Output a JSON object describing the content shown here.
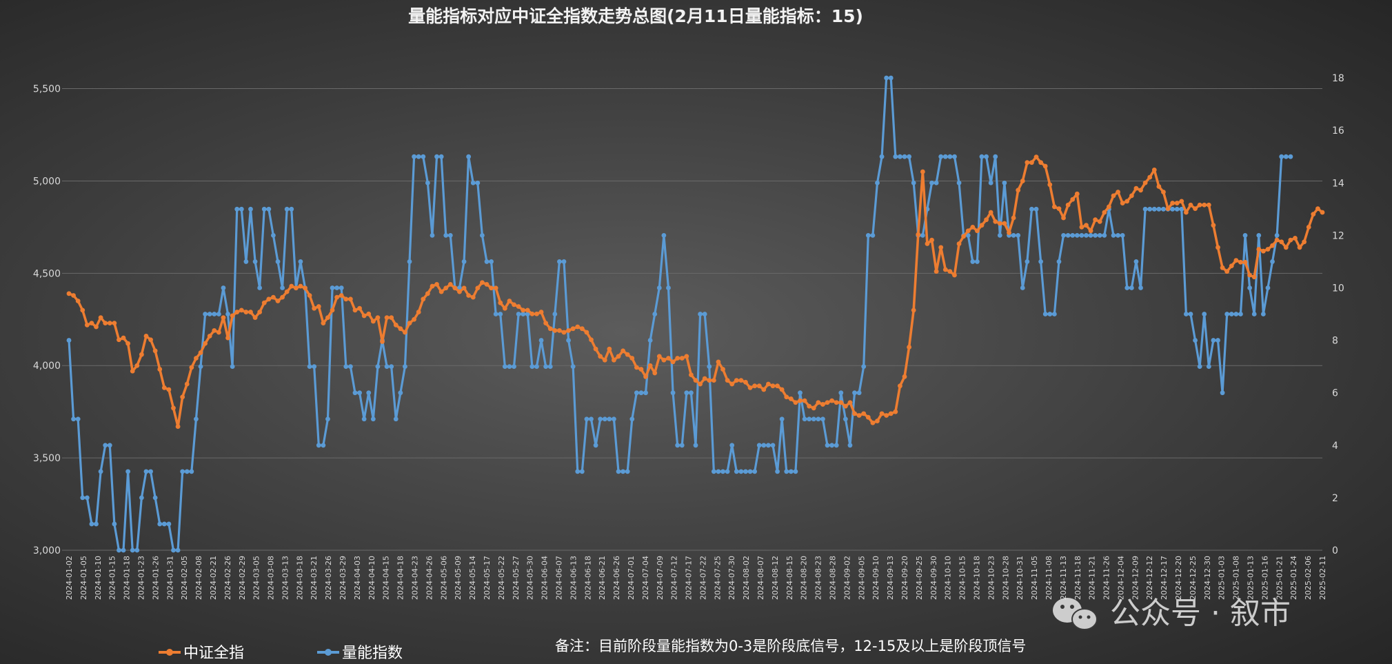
{
  "chart_data": {
    "type": "line",
    "title": "量能指标对应中证全指数走势总图(2月11日量能指标：15)",
    "xlabel": "",
    "ylabel": "",
    "y_left_ticks": [
      "3,000",
      "3,500",
      "4,000",
      "4,500",
      "5,000",
      "5,500"
    ],
    "y_left_range": [
      3000,
      5700
    ],
    "y_right_ticks": [
      "0",
      "2",
      "4",
      "6",
      "8",
      "10",
      "12",
      "14",
      "16",
      "18"
    ],
    "y_right_range": [
      0,
      19
    ],
    "grid": true,
    "legend_position": "bottom-left",
    "x_tick_labels": [
      "2024-01-02",
      "2024-01-05",
      "2024-01-10",
      "2024-01-15",
      "2024-01-18",
      "2024-01-23",
      "2024-01-26",
      "2024-01-31",
      "2024-02-05",
      "2024-02-08",
      "2024-02-21",
      "2024-02-26",
      "2024-02-29",
      "2024-03-05",
      "2024-03-08",
      "2024-03-13",
      "2024-03-18",
      "2024-03-21",
      "2024-03-26",
      "2024-03-29",
      "2024-04-03",
      "2024-04-10",
      "2024-04-15",
      "2024-04-18",
      "2024-04-23",
      "2024-04-26",
      "2024-05-06",
      "2024-05-09",
      "2024-05-14",
      "2024-05-17",
      "2024-05-22",
      "2024-05-27",
      "2024-05-30",
      "2024-06-04",
      "2024-06-07",
      "2024-06-13",
      "2024-06-18",
      "2024-06-21",
      "2024-06-26",
      "2024-07-01",
      "2024-07-04",
      "2024-07-09",
      "2024-07-12",
      "2024-07-17",
      "2024-07-22",
      "2024-07-25",
      "2024-07-30",
      "2024-08-02",
      "2024-08-07",
      "2024-08-12",
      "2024-08-15",
      "2024-08-20",
      "2024-08-23",
      "2024-08-28",
      "2024-09-02",
      "2024-09-05",
      "2024-09-10",
      "2024-09-13",
      "2024-09-20",
      "2024-09-25",
      "2024-09-30",
      "2024-10-10",
      "2024-10-15",
      "2024-10-18",
      "2024-10-23",
      "2024-10-28",
      "2024-10-31",
      "2024-11-05",
      "2024-11-08",
      "2024-11-13",
      "2024-11-18",
      "2024-11-21",
      "2024-11-26",
      "2024-12-04",
      "2024-12-09",
      "2024-12-12",
      "2024-12-17",
      "2024-12-20",
      "2024-12-25",
      "2024-12-30",
      "2025-01-03",
      "2025-01-08",
      "2025-01-13",
      "2025-01-16",
      "2025-01-21",
      "2025-01-24",
      "2025-02-06",
      "2025-02-11"
    ],
    "series": [
      {
        "name": "中证全指",
        "axis": "left",
        "color": "#ed7d31",
        "values": [
          4390,
          4380,
          4350,
          4300,
          4220,
          4230,
          4210,
          4260,
          4230,
          4230,
          4230,
          4140,
          4150,
          4120,
          3970,
          4000,
          4060,
          4160,
          4140,
          4080,
          3980,
          3880,
          3870,
          3770,
          3670,
          3830,
          3900,
          3990,
          4040,
          4070,
          4120,
          4160,
          4190,
          4180,
          4260,
          4150,
          4270,
          4290,
          4300,
          4290,
          4290,
          4260,
          4290,
          4340,
          4360,
          4370,
          4350,
          4370,
          4400,
          4430,
          4420,
          4430,
          4420,
          4380,
          4310,
          4320,
          4230,
          4260,
          4300,
          4370,
          4380,
          4360,
          4360,
          4300,
          4310,
          4270,
          4280,
          4240,
          4260,
          4130,
          4260,
          4260,
          4220,
          4200,
          4180,
          4230,
          4250,
          4290,
          4360,
          4390,
          4430,
          4440,
          4400,
          4420,
          4440,
          4420,
          4400,
          4420,
          4380,
          4370,
          4420,
          4450,
          4440,
          4420,
          4420,
          4340,
          4310,
          4350,
          4330,
          4320,
          4300,
          4300,
          4280,
          4280,
          4290,
          4230,
          4200,
          4190,
          4190,
          4180,
          4190,
          4200,
          4210,
          4200,
          4180,
          4140,
          4090,
          4050,
          4030,
          4090,
          4030,
          4050,
          4080,
          4060,
          4040,
          3990,
          3980,
          3940,
          4000,
          3960,
          4050,
          4030,
          4040,
          4020,
          4040,
          4040,
          4050,
          3950,
          3920,
          3900,
          3930,
          3920,
          3920,
          4020,
          3980,
          3920,
          3900,
          3920,
          3920,
          3910,
          3880,
          3890,
          3890,
          3870,
          3900,
          3890,
          3890,
          3870,
          3830,
          3820,
          3800,
          3810,
          3810,
          3780,
          3770,
          3800,
          3790,
          3800,
          3810,
          3800,
          3800,
          3780,
          3800,
          3740,
          3730,
          3740,
          3720,
          3690,
          3700,
          3740,
          3730,
          3740,
          3750,
          3890,
          3940,
          4100,
          4300,
          4710,
          5050,
          4660,
          4680,
          4510,
          4640,
          4520,
          4510,
          4490,
          4660,
          4700,
          4730,
          4750,
          4730,
          4760,
          4790,
          4830,
          4780,
          4770,
          4770,
          4720,
          4800,
          4950,
          5000,
          5100,
          5100,
          5130,
          5100,
          5080,
          4980,
          4860,
          4850,
          4800,
          4870,
          4900,
          4930,
          4750,
          4760,
          4730,
          4790,
          4780,
          4830,
          4860,
          4920,
          4940,
          4880,
          4890,
          4920,
          4960,
          4950,
          4990,
          5020,
          5060,
          4970,
          4940,
          4850,
          4880,
          4880,
          4890,
          4830,
          4870,
          4850,
          4870,
          4870,
          4870,
          4760,
          4640,
          4530,
          4510,
          4540,
          4570,
          4560,
          4560,
          4490,
          4480,
          4630,
          4620,
          4630,
          4650,
          4680,
          4670,
          4640,
          4680,
          4690,
          4640,
          4670,
          4750,
          4820,
          4850,
          4830
        ]
      },
      {
        "name": "量能指数",
        "axis": "right",
        "color": "#5b9bd5",
        "values": [
          8,
          5,
          5,
          2,
          2,
          1,
          1,
          3,
          4,
          4,
          1,
          0,
          0,
          3,
          0,
          0,
          2,
          3,
          3,
          2,
          1,
          1,
          1,
          0,
          0,
          3,
          3,
          3,
          5,
          7,
          9,
          9,
          9,
          9,
          10,
          9,
          7,
          13,
          13,
          11,
          13,
          11,
          10,
          13,
          13,
          12,
          11,
          10,
          13,
          13,
          10,
          11,
          10,
          7,
          7,
          4,
          4,
          5,
          10,
          10,
          10,
          7,
          7,
          6,
          6,
          5,
          6,
          5,
          7,
          8,
          7,
          7,
          5,
          6,
          7,
          11,
          15,
          15,
          15,
          14,
          12,
          15,
          15,
          12,
          12,
          10,
          10,
          11,
          15,
          14,
          14,
          12,
          11,
          11,
          9,
          9,
          7,
          7,
          7,
          9,
          9,
          9,
          7,
          7,
          8,
          7,
          7,
          9,
          11,
          11,
          8,
          7,
          3,
          3,
          5,
          5,
          4,
          5,
          5,
          5,
          5,
          3,
          3,
          3,
          5,
          6,
          6,
          6,
          8,
          9,
          10,
          12,
          10,
          6,
          4,
          4,
          6,
          6,
          4,
          9,
          9,
          7,
          3,
          3,
          3,
          3,
          4,
          3,
          3,
          3,
          3,
          3,
          4,
          4,
          4,
          4,
          3,
          5,
          3,
          3,
          3,
          6,
          5,
          5,
          5,
          5,
          5,
          4,
          4,
          4,
          6,
          5,
          4,
          6,
          6,
          7,
          12,
          12,
          14,
          15,
          18,
          18,
          15,
          15,
          15,
          15,
          14,
          12,
          12,
          13,
          14,
          14,
          15,
          15,
          15,
          15,
          14,
          12,
          12,
          11,
          11,
          15,
          15,
          14,
          15,
          12,
          14,
          12,
          12,
          12,
          10,
          11,
          13,
          13,
          11,
          9,
          9,
          9,
          11,
          12,
          12,
          12,
          12,
          12,
          12,
          12,
          12,
          12,
          12,
          13,
          12,
          12,
          12,
          10,
          10,
          11,
          10,
          13,
          13,
          13,
          13,
          13,
          13,
          13,
          13,
          13,
          9,
          9,
          8,
          7,
          9,
          7,
          8,
          8,
          6,
          9,
          9,
          9,
          9,
          12,
          10,
          9,
          12,
          9,
          10,
          11,
          12,
          15,
          15,
          15
        ]
      }
    ],
    "legend": [
      "中证全指",
      "量能指数"
    ],
    "annotation": "备注：目前阶段量能指数为0-3是阶段底信号，12-15及以上是阶段顶信号"
  },
  "watermark": "公众号 · 叙市",
  "colors": {
    "index_line": "#ed7d31",
    "volume_line": "#5b9bd5",
    "text": "#d9d9d9"
  }
}
